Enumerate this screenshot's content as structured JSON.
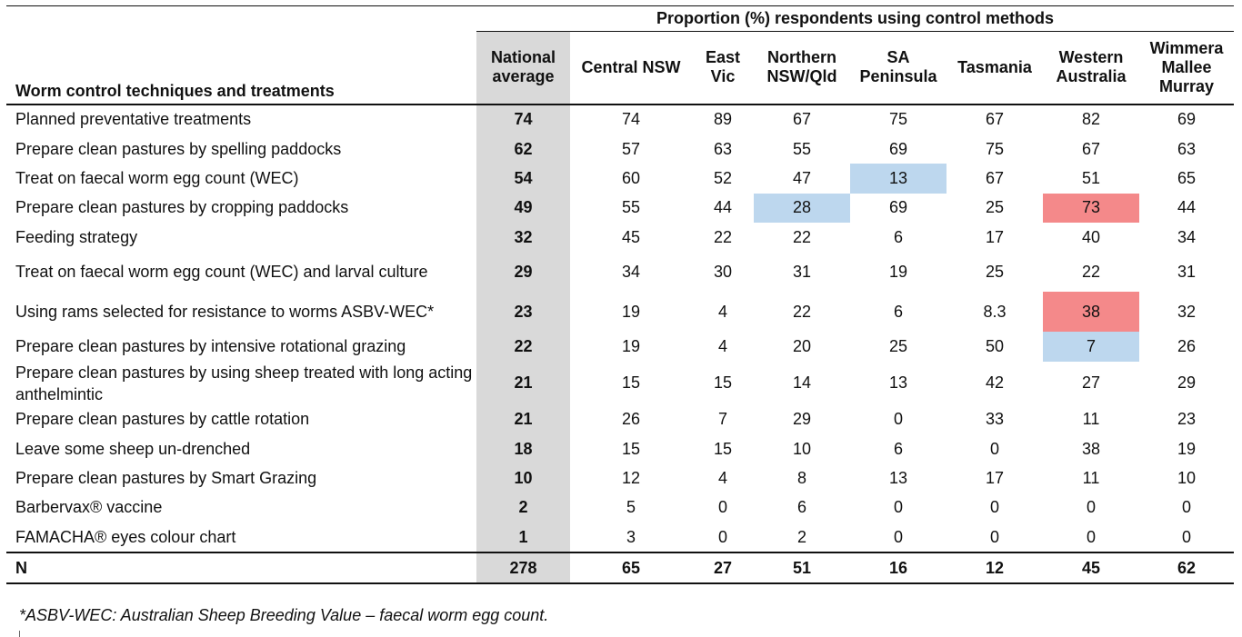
{
  "table": {
    "super_header": "Proportion (%) respondents using control methods",
    "row_header": "Worm control techniques and treatments",
    "columns": [
      "National average",
      "Central NSW",
      "East Vic",
      "Northern NSW/Qld",
      "SA Peninsula",
      "Tasmania",
      "Western Australia",
      "Wimmera Mallee Murray"
    ],
    "rows": [
      {
        "label": "Planned preventative treatments",
        "values": [
          "74",
          "74",
          "89",
          "67",
          "75",
          "67",
          "82",
          "69"
        ]
      },
      {
        "label": "Prepare clean pastures by spelling paddocks",
        "values": [
          "62",
          "57",
          "63",
          "55",
          "69",
          "75",
          "67",
          "63"
        ]
      },
      {
        "label": "Treat on faecal worm egg count (WEC)",
        "values": [
          "54",
          "60",
          "52",
          "47",
          "13",
          "67",
          "51",
          "65"
        ]
      },
      {
        "label": "Prepare clean pastures by cropping paddocks",
        "values": [
          "49",
          "55",
          "44",
          "28",
          "69",
          "25",
          "73",
          "44"
        ]
      },
      {
        "label": "Feeding strategy",
        "values": [
          "32",
          "45",
          "22",
          "22",
          "6",
          "17",
          "40",
          "34"
        ]
      },
      {
        "label": "Treat on faecal worm egg count (WEC) and larval culture",
        "values": [
          "29",
          "34",
          "30",
          "31",
          "19",
          "25",
          "22",
          "31"
        ]
      },
      {
        "label": "Using rams selected for resistance to worms ASBV-WEC*",
        "values": [
          "23",
          "19",
          "4",
          "22",
          "6",
          "8.3",
          "38",
          "32"
        ]
      },
      {
        "label": "Prepare clean pastures by intensive rotational grazing",
        "values": [
          "22",
          "19",
          "4",
          "20",
          "25",
          "50",
          "7",
          "26"
        ]
      },
      {
        "label": "Prepare clean pastures by using sheep treated with long acting anthelmintic",
        "values": [
          "21",
          "15",
          "15",
          "14",
          "13",
          "42",
          "27",
          "29"
        ]
      },
      {
        "label": "Prepare clean pastures by cattle rotation",
        "values": [
          "21",
          "26",
          "7",
          "29",
          "0",
          "33",
          "11",
          "23"
        ]
      },
      {
        "label": "Leave some sheep un-drenched",
        "values": [
          "18",
          "15",
          "15",
          "10",
          "6",
          "0",
          "38",
          "19"
        ]
      },
      {
        "label": "Prepare clean pastures by Smart Grazing",
        "values": [
          "10",
          "12",
          "4",
          "8",
          "13",
          "17",
          "11",
          "10"
        ]
      },
      {
        "label": "Barbervax® vaccine",
        "values": [
          "2",
          "5",
          "0",
          "6",
          "0",
          "0",
          "0",
          "0"
        ]
      },
      {
        "label": "FAMACHA® eyes colour chart",
        "values": [
          "1",
          "3",
          "0",
          "2",
          "0",
          "0",
          "0",
          "0"
        ]
      }
    ],
    "n_row": {
      "label": "N",
      "values": [
        "278",
        "65",
        "27",
        "51",
        "16",
        "12",
        "45",
        "62"
      ]
    }
  },
  "footnote": "*ASBV-WEC: Australian Sheep Breeding Value – faecal worm egg count.",
  "colors": {
    "national_shade": "#d9d9d9",
    "highlight_low": "#bdd7ee",
    "highlight_high": "#f4898a"
  }
}
